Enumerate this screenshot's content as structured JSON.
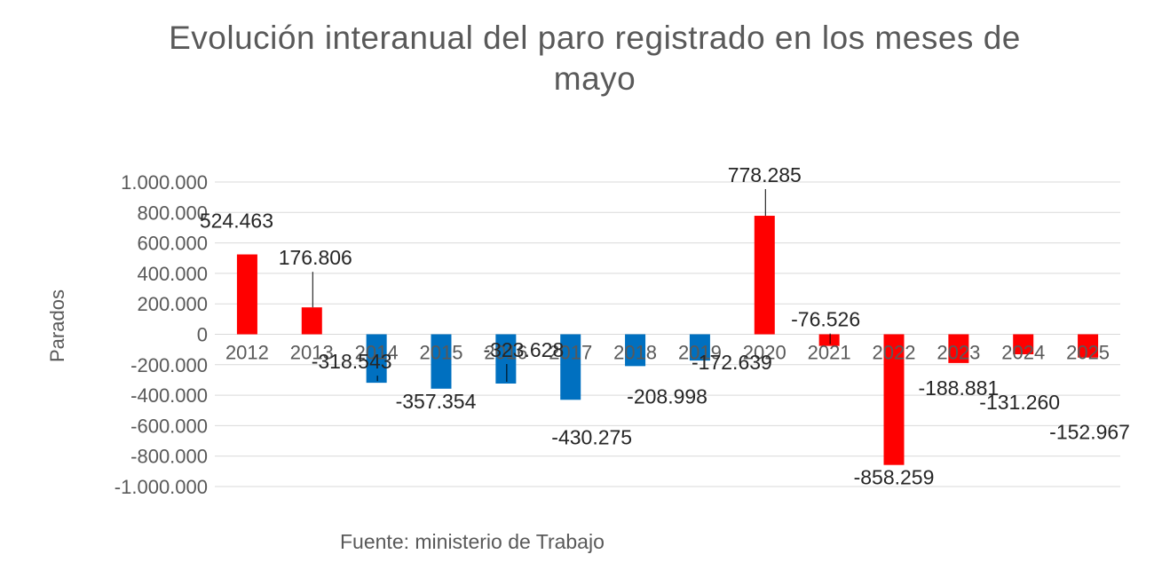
{
  "chart_data": {
    "type": "bar",
    "title": "Evolución interanual del paro registrado en los meses de mayo",
    "ylabel": "Parados",
    "xlabel": "",
    "source": "Fuente: ministerio de Trabajo",
    "ylim": [
      -1000000,
      1000000
    ],
    "ytick_values": [
      1000000,
      800000,
      600000,
      400000,
      200000,
      0,
      -200000,
      -400000,
      -600000,
      -800000,
      -1000000
    ],
    "ytick_labels": [
      "1.000.000",
      "800.000",
      "600.000",
      "400.000",
      "200.000",
      "0",
      "-200.000",
      "-400.000",
      "-600.000",
      "-800.000",
      "-1.000.000"
    ],
    "grid": true,
    "categories": [
      "2012",
      "2013",
      "2014",
      "2015",
      "2016",
      "2017",
      "2018",
      "2019",
      "2020",
      "2021",
      "2022",
      "2023",
      "2024",
      "2025"
    ],
    "values": [
      524463,
      176806,
      -318543,
      -357354,
      -323628,
      -430275,
      -208998,
      -172639,
      778285,
      -76526,
      -858259,
      -188881,
      -131260,
      -152967
    ],
    "data_labels": [
      "524.463",
      "176.806",
      "-318.543",
      "-357.354",
      "-323.628",
      "-430.275",
      "-208.998",
      "-172.639",
      "778.285",
      "-76.526",
      "-858.259",
      "-188.881",
      "-131.260",
      "-152.967"
    ],
    "colors": [
      "#ff0000",
      "#ff0000",
      "#0070c0",
      "#0070c0",
      "#0070c0",
      "#0070c0",
      "#0070c0",
      "#0070c0",
      "#ff0000",
      "#ff0000",
      "#ff0000",
      "#ff0000",
      "#ff0000",
      "#ff0000"
    ]
  }
}
